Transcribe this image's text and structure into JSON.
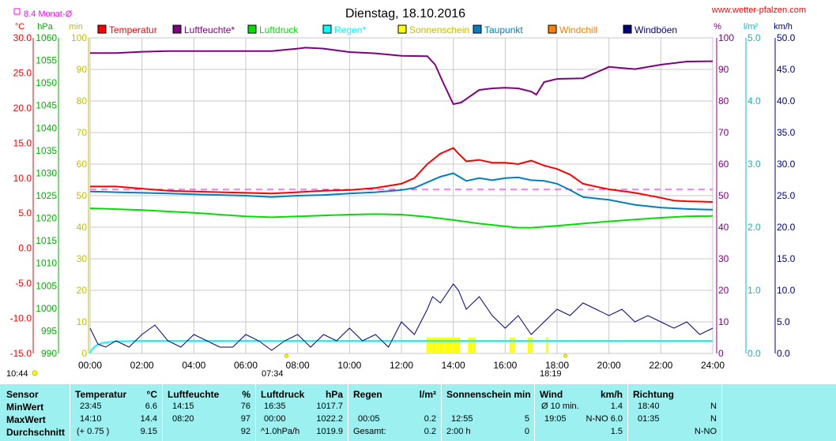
{
  "chart_data": {
    "type": "line",
    "title": "Dienstag, 18.10.2016",
    "source": "www.wetter-pfalzen.com",
    "monthly_avg_label": "8.4 Monat-Ø",
    "x_ticks": [
      "00:00",
      "02:00",
      "04:00",
      "06:00",
      "08:00",
      "10:00",
      "12:00",
      "14:00",
      "16:00",
      "18:00",
      "20:00",
      "22:00",
      "24:00"
    ],
    "sunrise": "07:34",
    "sunset": "18:19",
    "daylength": "10:44",
    "axes": {
      "temperature": {
        "unit": "°C",
        "range": [
          -15,
          30
        ],
        "ticks": [
          "30.0",
          "25.0",
          "20.0",
          "15.0",
          "10.0",
          "5.0",
          "0.0",
          "-5.0",
          "-10.0",
          "-15.0"
        ]
      },
      "pressure": {
        "unit": "hPa",
        "range": [
          990,
          1060
        ],
        "ticks": [
          "1060",
          "1055",
          "1050",
          "1045",
          "1040",
          "1035",
          "1030",
          "1025",
          "1020",
          "1015",
          "1010",
          "1005",
          "1000",
          "995",
          "990"
        ]
      },
      "sunshine_min": {
        "unit": "min",
        "range": [
          0,
          100
        ],
        "ticks": [
          "100",
          "90",
          "80",
          "70",
          "60",
          "50",
          "40",
          "30",
          "20",
          "10",
          "0"
        ]
      },
      "humidity": {
        "unit": "%",
        "range": [
          0,
          100
        ],
        "ticks": [
          "100",
          "90",
          "80",
          "70",
          "60",
          "50",
          "40",
          "30",
          "20",
          "10",
          "0"
        ]
      },
      "rain": {
        "unit": "l/m²",
        "range": [
          0,
          5
        ],
        "ticks": [
          "5.0",
          "4.0",
          "3.0",
          "2.0",
          "1.0",
          "0.0"
        ]
      },
      "wind": {
        "unit": "km/h",
        "range": [
          0,
          50
        ],
        "ticks": [
          "50.0",
          "45.0",
          "40.0",
          "35.0",
          "30.0",
          "25.0",
          "20.0",
          "15.0",
          "10.0",
          "5.0",
          "0.0"
        ]
      }
    },
    "legend": [
      {
        "name": "Temperatur",
        "color": "#ff0000"
      },
      {
        "name": "Luftfeuchte*",
        "color": "#800080"
      },
      {
        "name": "Luftdruck",
        "color": "#00e000"
      },
      {
        "name": "Regen*",
        "color": "#00ffff"
      },
      {
        "name": "Sonnenschein",
        "color": "#ffff00"
      },
      {
        "name": "Taupunkt",
        "color": "#0080c0"
      },
      {
        "name": "Windchill",
        "color": "#ff8000"
      },
      {
        "name": "Windböen",
        "color": "#000080"
      }
    ],
    "monthly_avg_temp": 8.4,
    "series": [
      {
        "name": "Temperatur",
        "axis": "temperature",
        "color": "#ff0000",
        "x": [
          0,
          1,
          2,
          3,
          4,
          5,
          6,
          7,
          8,
          9,
          10,
          11,
          12,
          12.5,
          13,
          13.5,
          14,
          14.2,
          14.5,
          15,
          15.5,
          16,
          16.5,
          17,
          17.5,
          18,
          18.5,
          19,
          20,
          21,
          22,
          22.5,
          23,
          24
        ],
        "values": [
          8.8,
          8.8,
          8.5,
          8.2,
          8.1,
          8.0,
          7.9,
          7.8,
          8.0,
          8.2,
          8.3,
          8.6,
          9.2,
          10.0,
          12.0,
          13.5,
          14.3,
          13.5,
          12.4,
          12.6,
          12.2,
          12.2,
          12.0,
          12.5,
          11.8,
          11.3,
          10.5,
          9.2,
          8.4,
          7.9,
          7.2,
          6.8,
          6.7,
          6.6
        ]
      },
      {
        "name": "Taupunkt",
        "axis": "temperature",
        "color": "#0080c0",
        "x": [
          0,
          1,
          2,
          3,
          4,
          5,
          6,
          7,
          8,
          9,
          10,
          11,
          12,
          12.5,
          13,
          13.5,
          14,
          14.5,
          15,
          15.5,
          16,
          16.5,
          17,
          17.5,
          18,
          18.5,
          19,
          20,
          21,
          22,
          23,
          24
        ],
        "values": [
          8.1,
          8.0,
          7.9,
          7.8,
          7.7,
          7.6,
          7.5,
          7.3,
          7.5,
          7.6,
          7.8,
          8.0,
          8.3,
          8.6,
          9.4,
          10.2,
          10.7,
          9.6,
          10.0,
          9.7,
          10.0,
          10.1,
          9.7,
          9.6,
          9.2,
          8.3,
          7.3,
          6.9,
          6.2,
          5.8,
          5.6,
          5.5
        ]
      },
      {
        "name": "Luftfeuchte*",
        "axis": "humidity",
        "color": "#800080",
        "x": [
          0,
          1,
          2,
          3,
          4,
          5,
          6,
          7,
          8,
          8.3,
          9,
          10,
          11,
          12,
          13,
          13.3,
          13.6,
          14,
          14.3,
          15,
          15.5,
          16,
          16.5,
          17,
          17.2,
          17.5,
          18,
          19,
          20,
          21,
          22,
          23,
          24
        ],
        "values": [
          95.2,
          95.2,
          95.6,
          95.8,
          95.8,
          95.8,
          95.8,
          95.8,
          96.6,
          96.9,
          96.6,
          95.5,
          95.1,
          94.3,
          94.2,
          91.5,
          86.0,
          79.0,
          79.5,
          83.5,
          84.0,
          84.2,
          84.0,
          83.0,
          82.0,
          86.0,
          87.0,
          87.2,
          90.8,
          90.1,
          91.5,
          92.5,
          92.6
        ]
      },
      {
        "name": "Luftdruck",
        "axis": "pressure",
        "color": "#00e000",
        "x": [
          0,
          1,
          2,
          3,
          4,
          5,
          6,
          7,
          8,
          9,
          10,
          11,
          12,
          13,
          14,
          15,
          16,
          16.5,
          17,
          18,
          19,
          20,
          21,
          22,
          23,
          24
        ],
        "values": [
          1022.2,
          1022.0,
          1021.8,
          1021.5,
          1021.2,
          1020.8,
          1020.4,
          1020.2,
          1020.4,
          1020.6,
          1020.8,
          1020.9,
          1020.8,
          1020.3,
          1019.6,
          1018.8,
          1018.2,
          1017.9,
          1017.9,
          1018.3,
          1018.8,
          1019.3,
          1019.7,
          1020.1,
          1020.4,
          1020.5
        ]
      },
      {
        "name": "Regen*",
        "axis": "rain",
        "color": "#00ffff",
        "x": [
          0,
          0.05,
          0.2,
          0.5,
          1,
          2,
          3,
          24
        ],
        "values": [
          0,
          0.05,
          0.12,
          0.17,
          0.19,
          0.2,
          0.2,
          0.2
        ]
      },
      {
        "name": "Windböen",
        "axis": "wind",
        "color": "#000080",
        "x": [
          0,
          0.3,
          0.6,
          1,
          1.5,
          2,
          2.5,
          3,
          3.5,
          4,
          4.5,
          5,
          5.5,
          6,
          6.5,
          7,
          7.5,
          8,
          8.5,
          9,
          9.5,
          10,
          10.5,
          11,
          11.5,
          12,
          12.5,
          13,
          13.2,
          13.5,
          14,
          14.2,
          14.5,
          15,
          15.5,
          16,
          16.5,
          17,
          17.5,
          18,
          18.5,
          19,
          19.5,
          20,
          20.5,
          21,
          21.5,
          22,
          22.5,
          23,
          23.5,
          24
        ],
        "values": [
          4,
          1.5,
          1,
          2,
          1,
          3,
          4.5,
          2,
          1,
          3,
          2,
          1,
          1,
          3,
          2,
          0.5,
          2,
          3,
          1,
          3,
          2,
          4,
          2,
          3,
          1,
          5,
          3,
          7,
          9,
          8,
          11,
          10,
          7,
          9,
          6,
          4,
          6,
          3,
          5,
          7,
          6,
          8,
          7,
          6,
          7,
          5,
          6,
          5,
          4,
          5,
          3,
          4
        ]
      }
    ],
    "sunshine_times": [
      13.0,
      13.1,
      13.2,
      13.3,
      13.4,
      13.5,
      13.6,
      13.7,
      13.8,
      13.9,
      14.0,
      14.1,
      14.2,
      14.6,
      14.7,
      14.8,
      16.2,
      16.3,
      16.9,
      17.0,
      17.6
    ]
  },
  "stats": {
    "sensor": {
      "header": "Sensor",
      "rows": [
        "MinWert",
        "MaxWert",
        "Durchschnitt"
      ]
    },
    "temperature": {
      "header": "Temperatur",
      "unit": "°C",
      "rows": [
        [
          "23:45",
          "6.6"
        ],
        [
          "14:10",
          "14.4"
        ],
        [
          "(+ 0.75 )",
          "9.15"
        ]
      ]
    },
    "humidity": {
      "header": "Luftfeuchte",
      "unit": "%",
      "rows": [
        [
          "14:15",
          "76"
        ],
        [
          "08:20",
          "97"
        ],
        [
          "",
          "92"
        ]
      ]
    },
    "pressure": {
      "header": "Luftdruck",
      "unit": "hPa",
      "rows": [
        [
          "16:35",
          "1017.7"
        ],
        [
          "00:00",
          "1022.2"
        ],
        [
          "^1.0hPa/h",
          "1019.9"
        ]
      ]
    },
    "rain": {
      "header": "Regen",
      "unit": "l/m²",
      "rows": [
        [
          "",
          ""
        ],
        [
          "00:05",
          "0.2"
        ],
        [
          "Gesamt:",
          "0.2"
        ]
      ]
    },
    "sunshine": {
      "header": "Sonnenschein min",
      "unit": "",
      "rows": [
        [
          "",
          ""
        ],
        [
          "12:55",
          "5"
        ],
        [
          "2:00 h",
          "0"
        ]
      ]
    },
    "wind": {
      "header": "Wind",
      "unit": "km/h",
      "rows": [
        [
          "Ø 10 min.",
          "1.4"
        ],
        [
          "19:05",
          "N-NO 6.0"
        ],
        [
          "",
          "1.5"
        ]
      ]
    },
    "direction": {
      "header": "Richtung",
      "unit": "",
      "rows": [
        [
          "18:40",
          "N"
        ],
        [
          "01:35",
          "N"
        ],
        [
          "",
          "N-NO"
        ]
      ]
    }
  }
}
